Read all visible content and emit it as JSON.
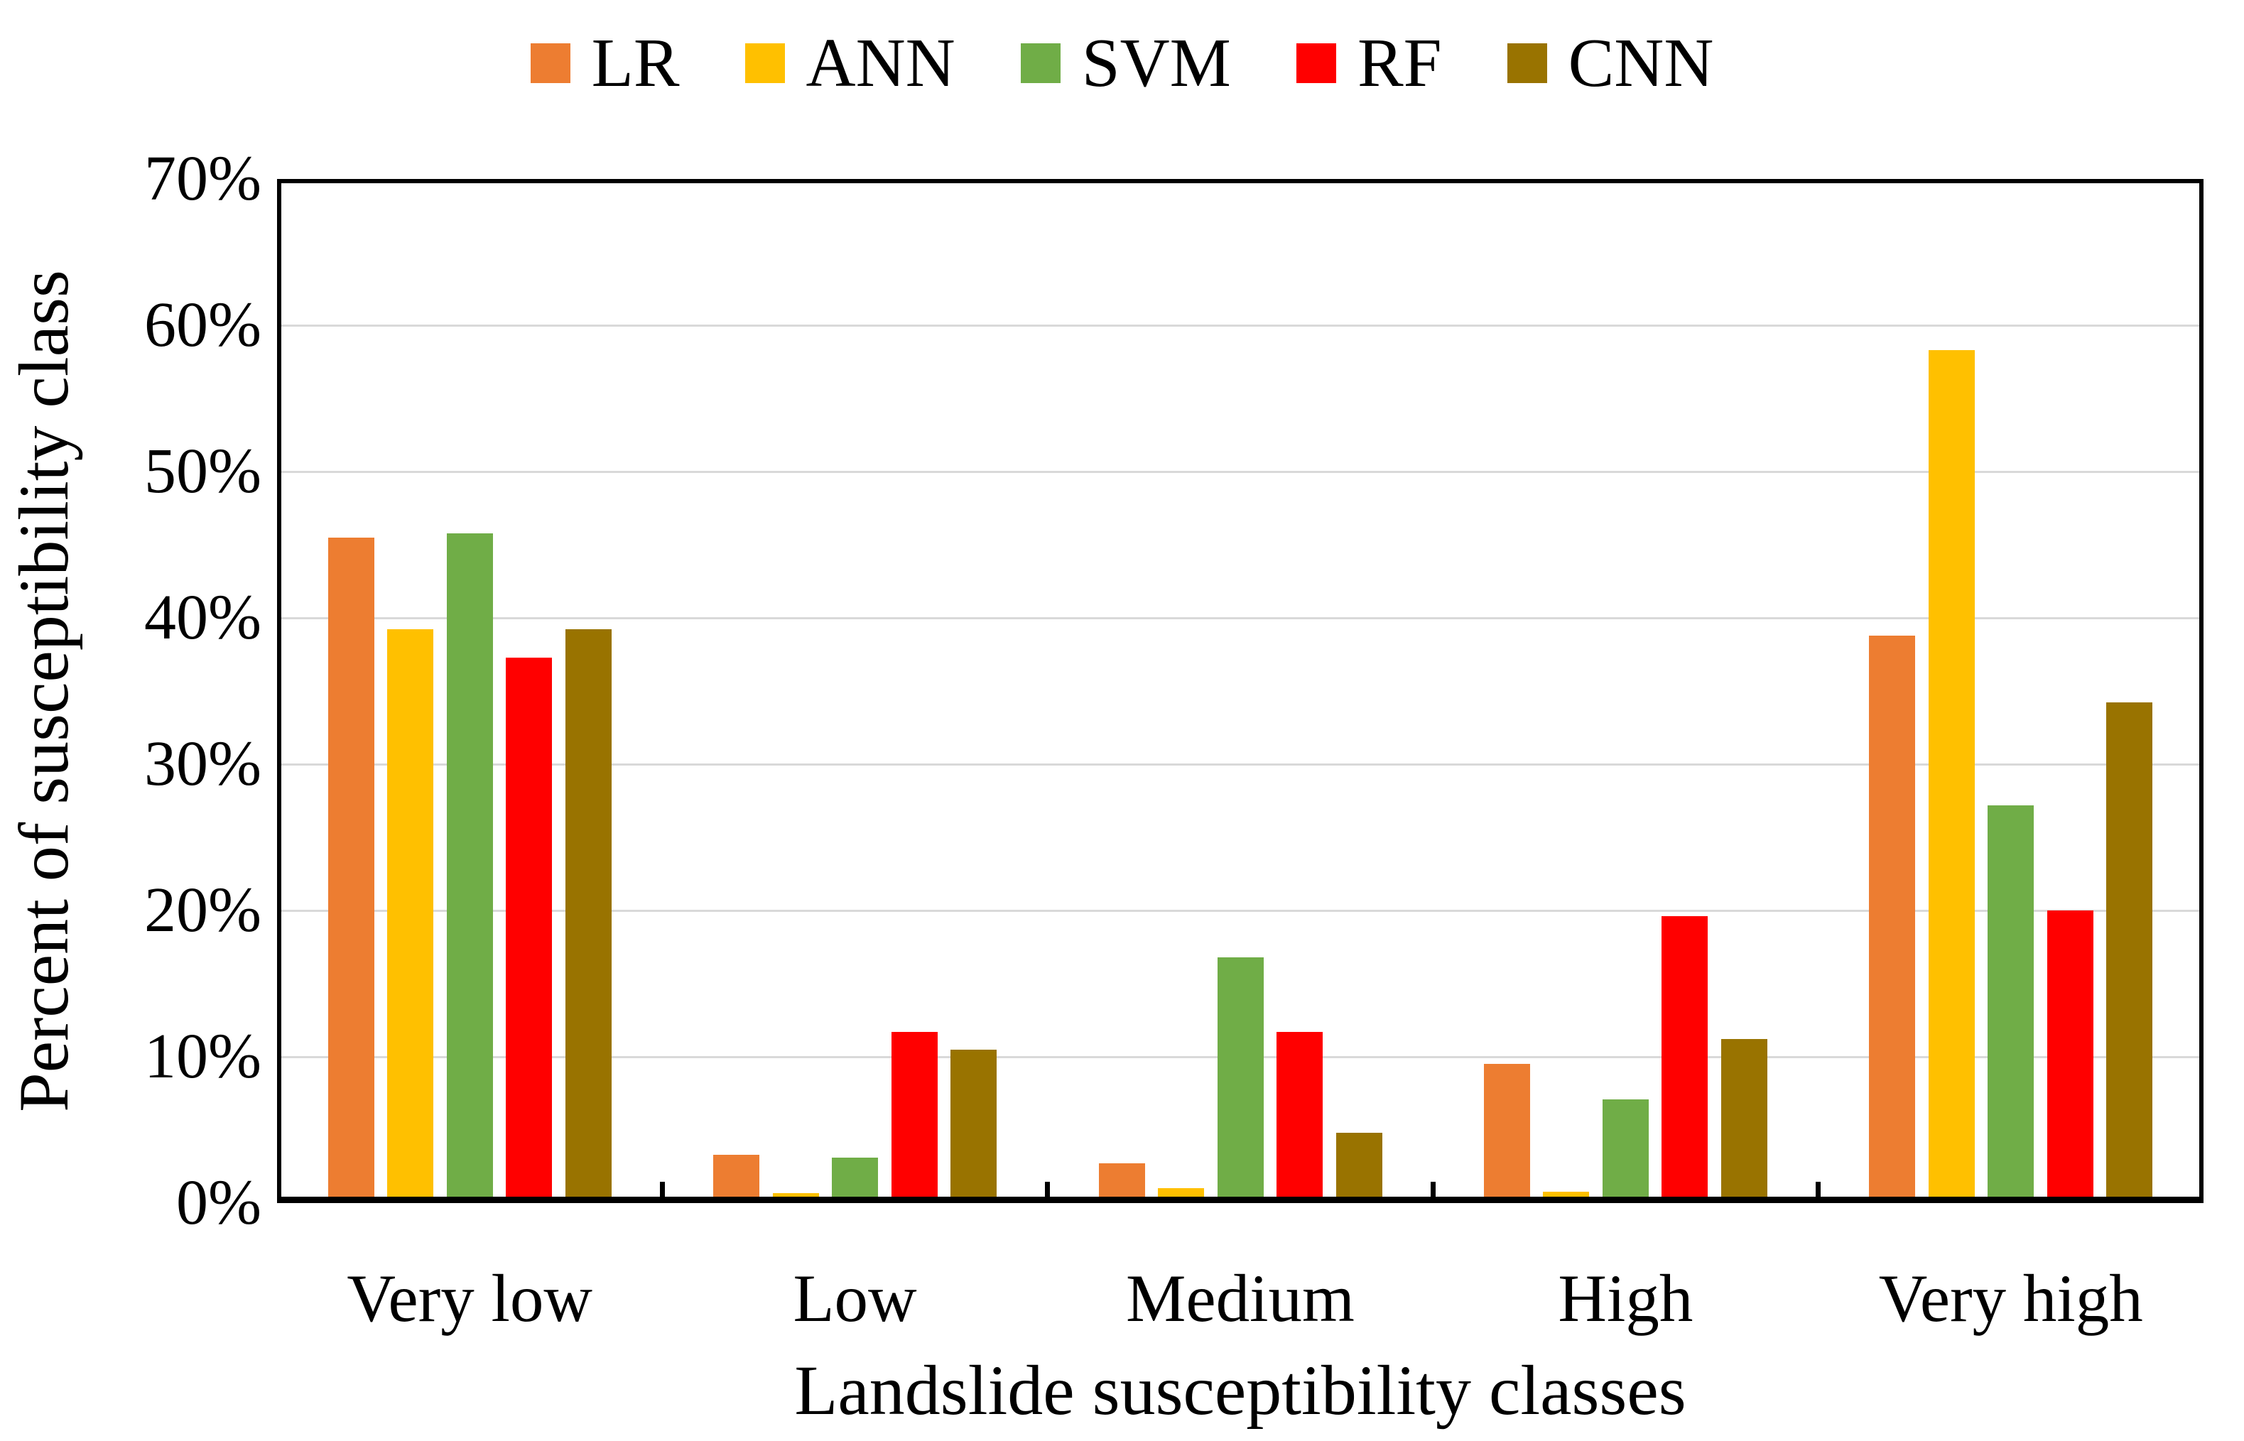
{
  "chart_data": {
    "type": "bar",
    "title": "",
    "categories": [
      "Very low",
      "Low",
      "Medium",
      "High",
      "Very high"
    ],
    "series": [
      {
        "name": "LR",
        "color": "#ED7D31",
        "values": [
          45.5,
          3.3,
          2.7,
          9.5,
          38.8
        ]
      },
      {
        "name": "ANN",
        "color": "#FFC000",
        "values": [
          39.2,
          0.7,
          1.0,
          0.8,
          58.3
        ]
      },
      {
        "name": "SVM",
        "color": "#70AD47",
        "values": [
          45.8,
          3.1,
          16.8,
          7.1,
          27.2
        ]
      },
      {
        "name": "RF",
        "color": "#FF0000",
        "values": [
          37.3,
          11.7,
          11.7,
          19.6,
          20.0
        ]
      },
      {
        "name": "CNN",
        "color": "#997300",
        "values": [
          39.2,
          10.5,
          4.8,
          11.2,
          34.2
        ]
      }
    ],
    "xlabel": "Landslide susceptibility classes",
    "ylabel": "Percent of susceptibility class",
    "ylim": [
      0,
      70
    ],
    "yticks": [
      "0%",
      "10%",
      "20%",
      "30%",
      "40%",
      "50%",
      "60%",
      "70%"
    ],
    "gridline_values": [
      10,
      20,
      30,
      40,
      50,
      60
    ],
    "grid_on": true,
    "grid_color": "#D9D9D9",
    "axis_color": "#000000",
    "legend_position": "top"
  }
}
